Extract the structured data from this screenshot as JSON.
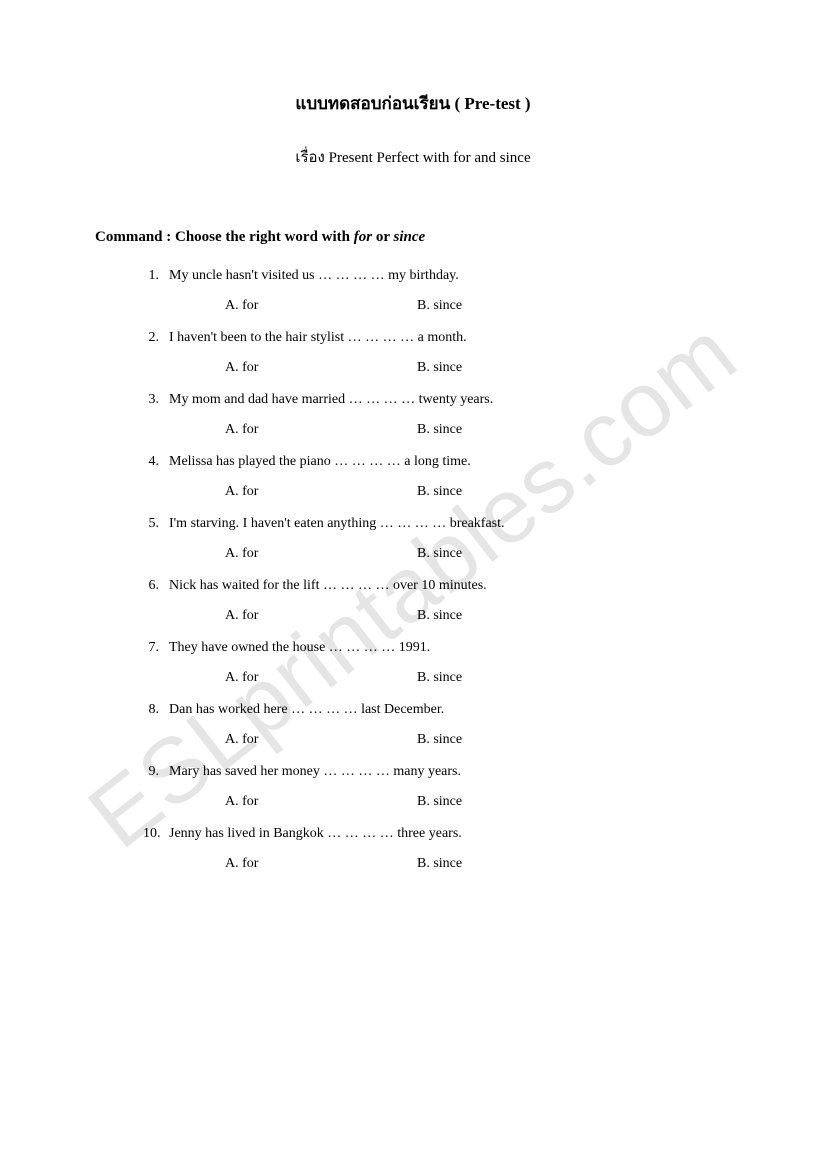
{
  "watermark": "ESLprintables.com",
  "title": "แบบทดสอบก่อนเรียน ( Pre-test )",
  "subtitle": "เรื่อง Present Perfect with for and since",
  "command_prefix": "Command : Choose the right word with ",
  "command_word1": "for",
  "command_or": " or ",
  "command_word2": "since",
  "blank": " … … … … ",
  "questions": [
    {
      "n": "1.",
      "before": "My uncle hasn't visited us",
      "after": "my birthday."
    },
    {
      "n": "2.",
      "before": "I haven't been to the hair stylist",
      "after": "a month."
    },
    {
      "n": "3.",
      "before": "My mom and dad have married",
      "after": "twenty years."
    },
    {
      "n": "4.",
      "before": "Melissa has played the piano",
      "after": "a long time."
    },
    {
      "n": "5.",
      "before": "I'm starving. I haven't eaten anything",
      "after": "breakfast."
    },
    {
      "n": "6.",
      "before": "Nick has waited for the lift",
      "after": " over 10 minutes."
    },
    {
      "n": "7.",
      "before": "They have owned the house",
      "after": " 1991."
    },
    {
      "n": "8.",
      "before": "Dan has worked  here",
      "after": "last December."
    },
    {
      "n": "9.",
      "before": "Mary has saved her money",
      "after": " many years."
    },
    {
      "n": "10.",
      "before": "Jenny has lived in Bangkok",
      "after": "three years."
    }
  ],
  "option_a": "A. for",
  "option_b": "B. since"
}
